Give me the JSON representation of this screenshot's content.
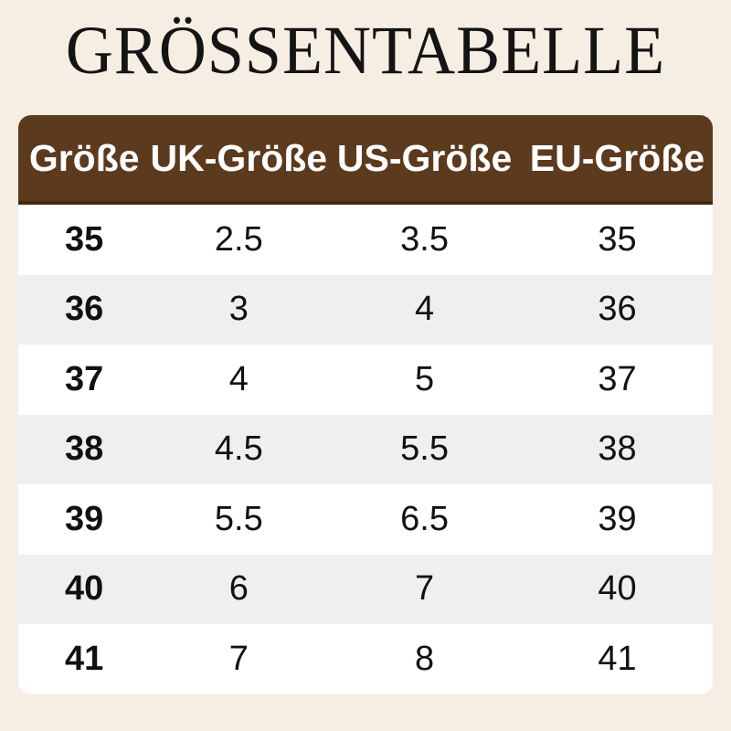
{
  "title": "GRÖSSENTABELLE",
  "table": {
    "headers": [
      "Größe",
      "UK-Größe",
      "US-Größe",
      "EU-Größe"
    ],
    "rows": [
      [
        "35",
        "2.5",
        "3.5",
        "35"
      ],
      [
        "36",
        "3",
        "4",
        "36"
      ],
      [
        "37",
        "4",
        "5",
        "37"
      ],
      [
        "38",
        "4.5",
        "5.5",
        "38"
      ],
      [
        "39",
        "5.5",
        "6.5",
        "39"
      ],
      [
        "40",
        "6",
        "7",
        "40"
      ],
      [
        "41",
        "7",
        "8",
        "41"
      ]
    ]
  },
  "colors": {
    "background": "#f6ede3",
    "header_bg": "#5c3a1e",
    "header_border": "#44280f",
    "header_text": "#ffffff",
    "row_white": "#ffffff",
    "row_alt": "#efefef",
    "text": "#111111"
  },
  "chart_data": {
    "type": "table",
    "title": "GRÖSSENTABELLE",
    "columns": [
      "Größe",
      "UK-Größe",
      "US-Größe",
      "EU-Größe"
    ],
    "rows": [
      [
        "35",
        "2.5",
        "3.5",
        "35"
      ],
      [
        "36",
        "3",
        "4",
        "36"
      ],
      [
        "37",
        "4",
        "5",
        "37"
      ],
      [
        "38",
        "4.5",
        "5.5",
        "38"
      ],
      [
        "39",
        "5.5",
        "6.5",
        "39"
      ],
      [
        "40",
        "6",
        "7",
        "40"
      ],
      [
        "41",
        "7",
        "8",
        "41"
      ]
    ],
    "layout_hints": {
      "header_style": "brown banner, white bold text, rounded top corners",
      "row_striping": "odd rows white, even rows light gray",
      "alignment": "all cells centered, first column bold"
    }
  }
}
